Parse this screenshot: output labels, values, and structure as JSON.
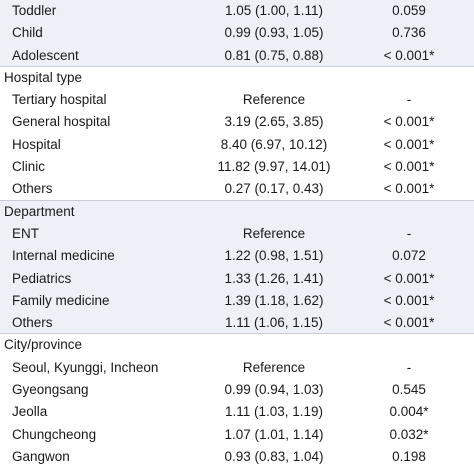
{
  "rows": [
    {
      "label": "Toddler",
      "or": "1.05 (1.00, 1.11)",
      "p": "0.059",
      "type": "item",
      "shaded": true
    },
    {
      "label": "Child",
      "or": "0.99 (0.93, 1.05)",
      "p": "0.736",
      "type": "item",
      "shaded": true
    },
    {
      "label": "Adolescent",
      "or": "0.81 (0.75, 0.88)",
      "p": "< 0.001*",
      "type": "item",
      "shaded": true,
      "rule": true
    },
    {
      "label": "Hospital type",
      "or": "",
      "p": "",
      "type": "header",
      "shaded": false
    },
    {
      "label": "Tertiary hospital",
      "or": "Reference",
      "p": "-",
      "type": "item",
      "shaded": false
    },
    {
      "label": "General hospital",
      "or": "3.19 (2.65, 3.85)",
      "p": "< 0.001*",
      "type": "item",
      "shaded": false
    },
    {
      "label": "Hospital",
      "or": "8.40 (6.97, 10.12)",
      "p": "< 0.001*",
      "type": "item",
      "shaded": false
    },
    {
      "label": "Clinic",
      "or": "11.82 (9.97, 14.01)",
      "p": "< 0.001*",
      "type": "item",
      "shaded": false
    },
    {
      "label": "Others",
      "or": "0.27 (0.17, 0.43)",
      "p": "< 0.001*",
      "type": "item",
      "shaded": false,
      "rule": true
    },
    {
      "label": "Department",
      "or": "",
      "p": "",
      "type": "header",
      "shaded": true
    },
    {
      "label": "ENT",
      "or": "Reference",
      "p": "-",
      "type": "item",
      "shaded": true
    },
    {
      "label": "Internal medicine",
      "or": "1.22 (0.98, 1.51)",
      "p": "0.072",
      "type": "item",
      "shaded": true
    },
    {
      "label": "Pediatrics",
      "or": "1.33 (1.26, 1.41)",
      "p": "< 0.001*",
      "type": "item",
      "shaded": true
    },
    {
      "label": "Family medicine",
      "or": "1.39 (1.18, 1.62)",
      "p": "< 0.001*",
      "type": "item",
      "shaded": true
    },
    {
      "label": "Others",
      "or": "1.11 (1.06, 1.15)",
      "p": "< 0.001*",
      "type": "item",
      "shaded": true,
      "rule": true
    },
    {
      "label": "City/province",
      "or": "",
      "p": "",
      "type": "header",
      "shaded": false
    },
    {
      "label": "Seoul, Kyunggi, Incheon",
      "or": "Reference",
      "p": "-",
      "type": "item",
      "shaded": false
    },
    {
      "label": "Gyeongsang",
      "or": "0.99 (0.94, 1.03)",
      "p": "0.545",
      "type": "item",
      "shaded": false
    },
    {
      "label": "Jeolla",
      "or": "1.11 (1.03, 1.19)",
      "p": "0.004*",
      "type": "item",
      "shaded": false
    },
    {
      "label": "Chungcheong",
      "or": "1.07 (1.01, 1.14)",
      "p": "0.032*",
      "type": "item",
      "shaded": false
    },
    {
      "label": "Gangwon",
      "or": "0.93 (0.83, 1.04)",
      "p": "0.198",
      "type": "item",
      "shaded": false
    }
  ]
}
